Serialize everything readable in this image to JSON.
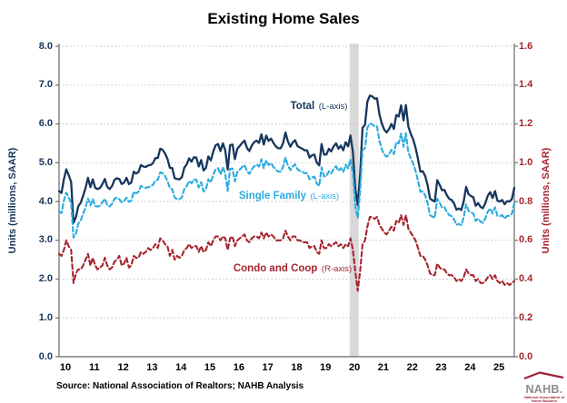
{
  "title": "Existing Home Sales",
  "source": "Source: National Association of Realtors; NAHB Analysis",
  "logo": {
    "text": "NAHB.",
    "subtext": "National Association of Home Builders",
    "roof_color": "#9d2235"
  },
  "chart_data": {
    "type": "line",
    "title": "Existing Home Sales",
    "x_unit": "month",
    "x_start": "2010-01",
    "x_end": "2025-10",
    "x_tick_labels": [
      "10",
      "11",
      "12",
      "13",
      "14",
      "15",
      "16",
      "17",
      "18",
      "19",
      "20",
      "21",
      "22",
      "23",
      "24",
      "25"
    ],
    "grid": "horizontal-dotted",
    "gridline_color": "#c4c4c4",
    "axis_line_color": "#7f7f7f",
    "legend_position": "inline-annotations",
    "left_axis": {
      "label": "Units (millions, SAAR)",
      "min": 0,
      "max": 8,
      "tick_step": 1,
      "tick_values": [
        0,
        1,
        2,
        3,
        4,
        5,
        6,
        7,
        8
      ],
      "tick_labels": [
        "0.0",
        "1.0",
        "2.0",
        "3.0",
        "4.0",
        "5.0",
        "6.0",
        "7.0",
        "8.0"
      ],
      "color": "#17365d"
    },
    "right_axis": {
      "label": "Units (millions, SAAR)",
      "min": 0,
      "max": 1.6,
      "tick_step": 0.2,
      "tick_values": [
        0,
        0.2,
        0.4,
        0.6,
        0.8,
        1.0,
        1.2,
        1.4,
        1.6
      ],
      "tick_labels": [
        "0.0",
        "0.2",
        "0.4",
        "0.6",
        "0.8",
        "1.0",
        "1.2",
        "1.4",
        "1.6"
      ],
      "color": "#a6252e"
    },
    "recession_band": {
      "from": "2020-02",
      "to": "2020-05",
      "color": "#d9d9d9"
    },
    "series": [
      {
        "name": "Total",
        "axis_tag": "(L-axis)",
        "axis": "left",
        "color": "#17365d",
        "style": "solid",
        "values": [
          4.27,
          4.22,
          4.57,
          4.83,
          4.68,
          4.5,
          3.45,
          3.6,
          3.88,
          3.97,
          4.15,
          4.35,
          4.61,
          4.37,
          4.57,
          4.35,
          4.32,
          4.35,
          4.45,
          4.58,
          4.38,
          4.32,
          4.4,
          4.56,
          4.6,
          4.58,
          4.45,
          4.49,
          4.61,
          4.45,
          4.49,
          4.77,
          4.72,
          4.76,
          4.94,
          4.9,
          4.89,
          4.93,
          4.94,
          4.99,
          5.12,
          5.12,
          5.36,
          5.33,
          5.24,
          5.1,
          4.87,
          4.86,
          4.6,
          4.58,
          4.57,
          4.63,
          4.87,
          4.96,
          5.11,
          5.03,
          5.14,
          5.13,
          4.9,
          5.07,
          4.8,
          4.87,
          5.16,
          5.06,
          5.29,
          5.45,
          5.48,
          5.3,
          5.5,
          5.32,
          4.82,
          5.45,
          5.47,
          5.09,
          5.36,
          5.43,
          5.51,
          5.57,
          5.38,
          5.3,
          5.44,
          5.53,
          5.57,
          5.51,
          5.73,
          5.47,
          5.7,
          5.56,
          5.62,
          5.51,
          5.42,
          5.37,
          5.37,
          5.5,
          5.78,
          5.55,
          5.41,
          5.52,
          5.58,
          5.43,
          5.39,
          5.36,
          5.32,
          5.32,
          5.13,
          5.19,
          5.21,
          5.0,
          4.93,
          5.48,
          5.21,
          5.21,
          5.36,
          5.29,
          5.42,
          5.5,
          5.36,
          5.44,
          5.32,
          5.53,
          5.42,
          5.7,
          5.27,
          4.33,
          3.91,
          4.7,
          5.9,
          5.98,
          6.57,
          6.73,
          6.71,
          6.65,
          6.66,
          6.24,
          6.01,
          5.85,
          5.78,
          5.87,
          6.0,
          5.87,
          6.23,
          6.19,
          6.48,
          6.09,
          6.49,
          5.93,
          5.75,
          5.6,
          5.39,
          5.1,
          4.77,
          4.78,
          4.66,
          4.42,
          4.08,
          4.03,
          4.0,
          4.55,
          4.43,
          4.29,
          4.3,
          4.16,
          4.07,
          4.04,
          3.95,
          3.79,
          3.82,
          3.78,
          4.0,
          4.38,
          4.19,
          4.14,
          4.11,
          3.89,
          3.96,
          3.86,
          3.83,
          3.96,
          4.15,
          4.24,
          4.09,
          4.27,
          4.02,
          4.0,
          4.04,
          3.93,
          4.01,
          4.0,
          4.06,
          4.35
        ]
      },
      {
        "name": "Single Family",
        "axis_tag": "(L-axis)",
        "axis": "left",
        "color": "#2aabdf",
        "style": "dashed",
        "values": [
          3.74,
          3.7,
          4.02,
          4.23,
          4.11,
          3.95,
          3.07,
          3.17,
          3.43,
          3.52,
          3.68,
          3.85,
          4.08,
          3.9,
          4.06,
          3.88,
          3.87,
          3.89,
          3.98,
          4.07,
          3.91,
          3.87,
          3.94,
          4.07,
          4.1,
          4.06,
          3.98,
          4.01,
          4.1,
          3.99,
          4.02,
          4.25,
          4.21,
          4.25,
          4.4,
          4.37,
          4.35,
          4.37,
          4.39,
          4.43,
          4.54,
          4.56,
          4.75,
          4.73,
          4.66,
          4.53,
          4.35,
          4.31,
          4.1,
          4.06,
          4.06,
          4.11,
          4.32,
          4.4,
          4.53,
          4.47,
          4.57,
          4.56,
          4.36,
          4.5,
          4.26,
          4.32,
          4.57,
          4.49,
          4.69,
          4.83,
          4.86,
          4.7,
          4.88,
          4.71,
          4.27,
          4.84,
          4.85,
          4.52,
          4.76,
          4.82,
          4.89,
          4.94,
          4.78,
          4.71,
          4.83,
          4.91,
          4.95,
          4.9,
          5.09,
          4.86,
          5.06,
          4.94,
          4.99,
          4.89,
          4.82,
          4.77,
          4.77,
          4.89,
          5.13,
          4.93,
          4.81,
          4.9,
          4.96,
          4.83,
          4.79,
          4.77,
          4.73,
          4.73,
          4.57,
          4.62,
          4.64,
          4.46,
          4.4,
          4.88,
          4.65,
          4.65,
          4.78,
          4.72,
          4.84,
          4.91,
          4.79,
          4.86,
          4.76,
          4.95,
          4.85,
          5.09,
          4.72,
          3.89,
          3.57,
          4.26,
          5.32,
          5.38,
          5.9,
          6.01,
          5.99,
          5.94,
          5.94,
          5.56,
          5.35,
          5.21,
          5.15,
          5.22,
          5.33,
          5.22,
          5.53,
          5.5,
          5.75,
          5.41,
          5.76,
          5.27,
          5.11,
          4.98,
          4.79,
          4.54,
          4.25,
          4.26,
          4.16,
          3.95,
          3.65,
          3.61,
          3.58,
          4.07,
          3.97,
          3.84,
          3.85,
          3.73,
          3.65,
          3.62,
          3.54,
          3.4,
          3.42,
          3.39,
          3.59,
          3.93,
          3.76,
          3.72,
          3.69,
          3.5,
          3.56,
          3.48,
          3.45,
          3.57,
          3.74,
          3.82,
          3.69,
          3.85,
          3.63,
          3.62,
          3.65,
          3.56,
          3.63,
          3.63,
          3.68,
          3.96
        ]
      },
      {
        "name": "Condo and Coop",
        "axis_tag": "(R-axis)",
        "axis": "right",
        "color": "#a6252e",
        "style": "dashed",
        "values": [
          0.53,
          0.52,
          0.55,
          0.6,
          0.57,
          0.55,
          0.38,
          0.43,
          0.45,
          0.45,
          0.47,
          0.5,
          0.53,
          0.47,
          0.51,
          0.47,
          0.45,
          0.46,
          0.47,
          0.51,
          0.47,
          0.45,
          0.46,
          0.49,
          0.5,
          0.52,
          0.47,
          0.48,
          0.51,
          0.46,
          0.47,
          0.52,
          0.51,
          0.51,
          0.54,
          0.53,
          0.54,
          0.56,
          0.55,
          0.56,
          0.58,
          0.56,
          0.61,
          0.6,
          0.58,
          0.57,
          0.52,
          0.55,
          0.5,
          0.52,
          0.51,
          0.52,
          0.55,
          0.56,
          0.58,
          0.56,
          0.57,
          0.57,
          0.54,
          0.57,
          0.54,
          0.55,
          0.59,
          0.57,
          0.6,
          0.62,
          0.62,
          0.6,
          0.62,
          0.61,
          0.55,
          0.61,
          0.62,
          0.57,
          0.6,
          0.61,
          0.62,
          0.63,
          0.6,
          0.59,
          0.61,
          0.62,
          0.62,
          0.61,
          0.64,
          0.61,
          0.64,
          0.62,
          0.63,
          0.62,
          0.6,
          0.6,
          0.6,
          0.61,
          0.65,
          0.62,
          0.6,
          0.62,
          0.62,
          0.6,
          0.6,
          0.59,
          0.59,
          0.59,
          0.56,
          0.57,
          0.57,
          0.54,
          0.53,
          0.6,
          0.56,
          0.56,
          0.58,
          0.57,
          0.58,
          0.59,
          0.57,
          0.58,
          0.56,
          0.58,
          0.57,
          0.61,
          0.55,
          0.44,
          0.34,
          0.44,
          0.58,
          0.6,
          0.67,
          0.72,
          0.72,
          0.71,
          0.72,
          0.68,
          0.66,
          0.64,
          0.63,
          0.65,
          0.67,
          0.65,
          0.7,
          0.69,
          0.73,
          0.68,
          0.73,
          0.66,
          0.64,
          0.62,
          0.6,
          0.56,
          0.52,
          0.52,
          0.5,
          0.47,
          0.43,
          0.42,
          0.42,
          0.48,
          0.46,
          0.45,
          0.45,
          0.43,
          0.42,
          0.42,
          0.41,
          0.39,
          0.4,
          0.39,
          0.41,
          0.45,
          0.43,
          0.42,
          0.42,
          0.39,
          0.4,
          0.38,
          0.38,
          0.39,
          0.41,
          0.42,
          0.4,
          0.42,
          0.39,
          0.38,
          0.39,
          0.37,
          0.38,
          0.37,
          0.38,
          0.39
        ]
      }
    ]
  }
}
